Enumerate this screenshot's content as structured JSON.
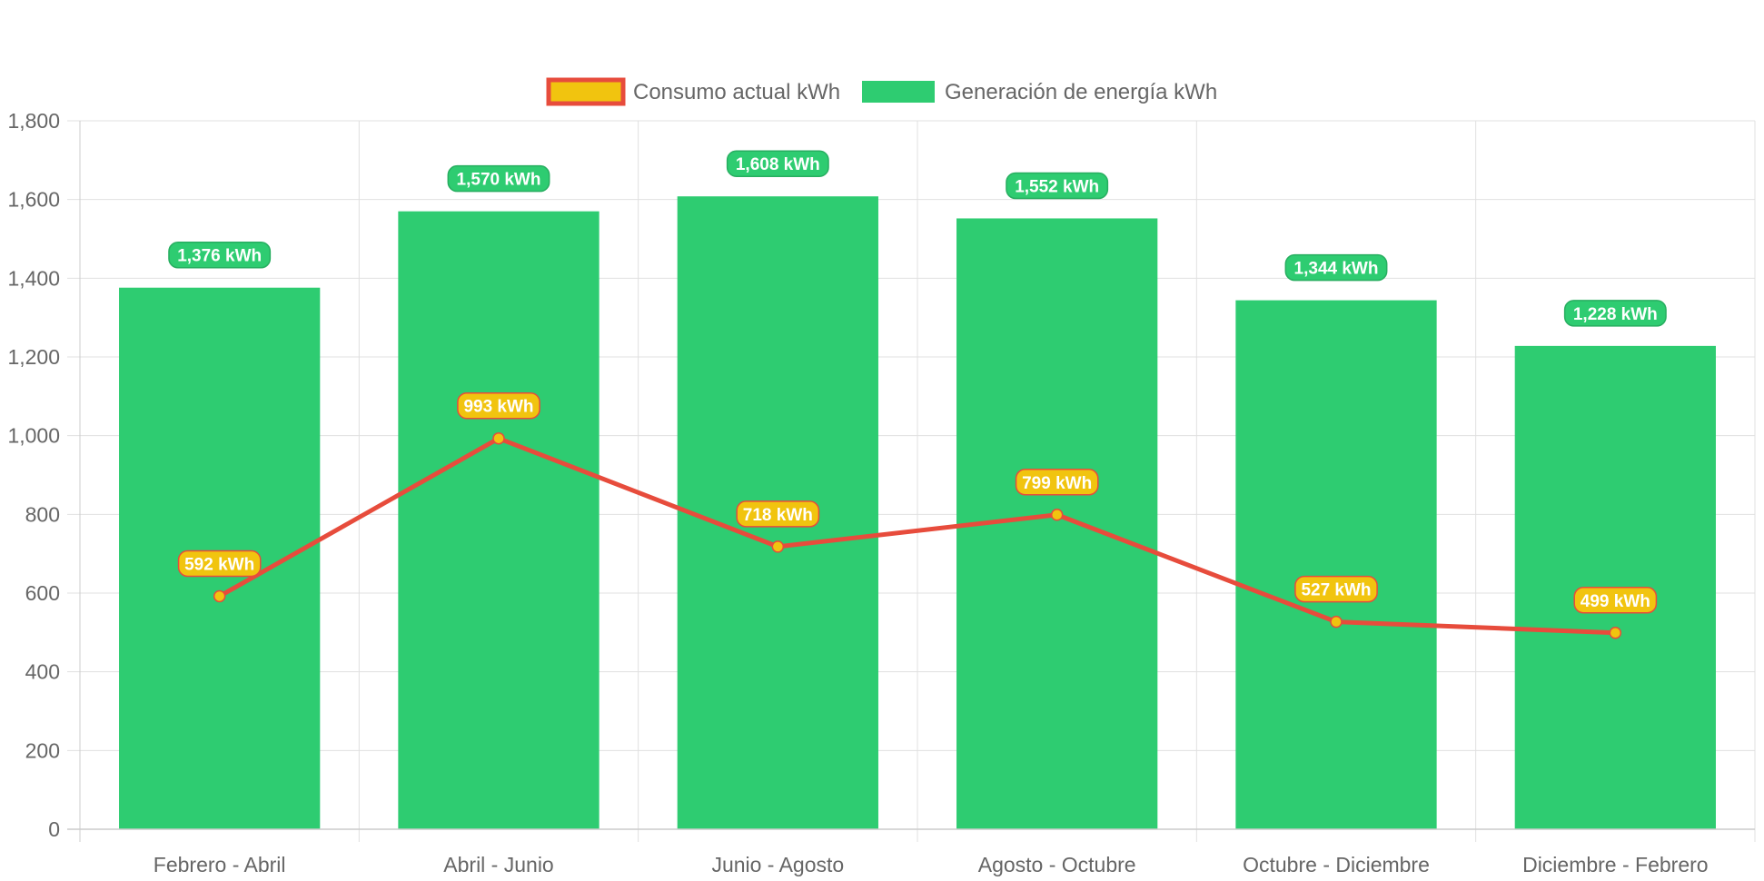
{
  "colors": {
    "generation_bar": "#2ecc71",
    "generation_label_bg": "#27ae60",
    "consumption_line": "#e74c3c",
    "consumption_point": "#f1c40f",
    "grid": "#e0e0e0",
    "axis": "#cccccc",
    "text": "#666666"
  },
  "chart_data": {
    "type": "bar",
    "title": "",
    "xlabel": "",
    "ylabel": "",
    "ylim": [
      0,
      1800
    ],
    "yticks": [
      "0",
      "200",
      "400",
      "600",
      "800",
      "1,000",
      "1,200",
      "1,400",
      "1,600",
      "1,800"
    ],
    "categories": [
      "Febrero - Abril",
      "Abril - Junio",
      "Junio - Agosto",
      "Agosto - Octubre",
      "Octubre - Diciembre",
      "Diciembre - Febrero"
    ],
    "legend_position": "top",
    "grid": true,
    "series": [
      {
        "name": "Consumo actual kWh",
        "type": "line",
        "values": [
          592,
          993,
          718,
          799,
          527,
          499
        ],
        "data_labels": [
          "592 kWh",
          "993 kWh",
          "718 kWh",
          "799 kWh",
          "527 kWh",
          "499 kWh"
        ]
      },
      {
        "name": "Generación de energía kWh",
        "type": "bar",
        "values": [
          1376,
          1570,
          1608,
          1552,
          1344,
          1228
        ],
        "data_labels": [
          "1,376 kWh",
          "1,570 kWh",
          "1,608 kWh",
          "1,552 kWh",
          "1,344 kWh",
          "1,228 kWh"
        ]
      }
    ]
  }
}
